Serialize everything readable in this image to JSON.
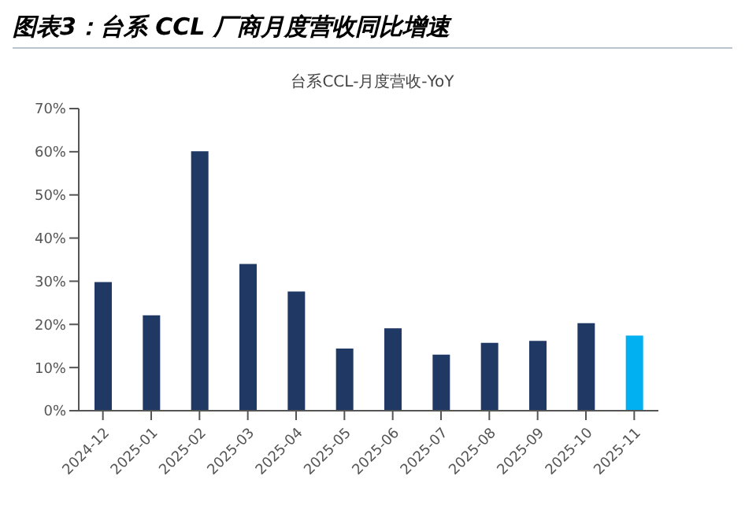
{
  "chart_data": {
    "type": "bar",
    "title": "图表3：台系 CCL 厂商月度营收同比增速",
    "subtitle": "台系CCL-月度营收-YoY",
    "categories": [
      "2024-12",
      "2025-01",
      "2025-02",
      "2025-03",
      "2025-04",
      "2025-05",
      "2025-06",
      "2025-07",
      "2025-08",
      "2025-09",
      "2025-10",
      "2025-11"
    ],
    "values": [
      29.8,
      22.1,
      60.1,
      34.0,
      27.6,
      14.4,
      19.1,
      13.0,
      15.7,
      16.2,
      20.3,
      17.4
    ],
    "colors": [
      "#1f3864",
      "#1f3864",
      "#1f3864",
      "#1f3864",
      "#1f3864",
      "#1f3864",
      "#1f3864",
      "#1f3864",
      "#1f3864",
      "#1f3864",
      "#1f3864",
      "#00b0f0"
    ],
    "ylim": [
      0,
      70
    ],
    "yticks": [
      {
        "value": 0,
        "label": "0%"
      },
      {
        "value": 10,
        "label": "10%"
      },
      {
        "value": 20,
        "label": "20%"
      },
      {
        "value": 30,
        "label": "30%"
      },
      {
        "value": 40,
        "label": "40%"
      },
      {
        "value": 50,
        "label": "50%"
      },
      {
        "value": 60,
        "label": "60%"
      },
      {
        "value": 70,
        "label": "70%"
      }
    ],
    "grid": false,
    "legend": false
  }
}
